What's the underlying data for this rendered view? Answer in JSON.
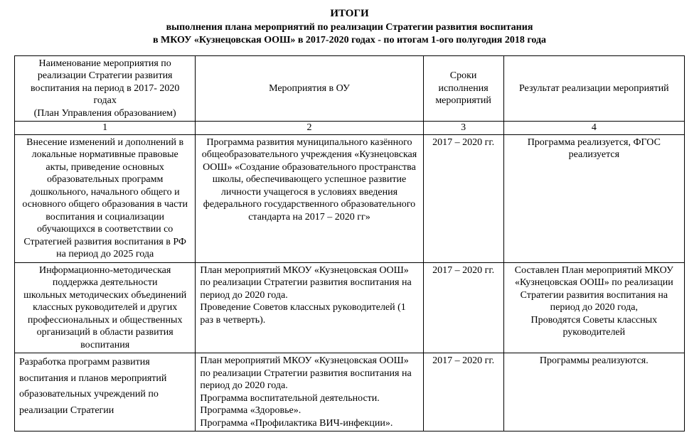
{
  "title": {
    "line1": "ИТОГИ",
    "line2": "выполнения плана мероприятий по реализации Стратегии развития воспитания",
    "line3": "в МКОУ «Кузнецовская ООШ» в 2017-2020 годах - по итогам 1-ого полугодия 2018 года"
  },
  "columns": {
    "h1": "Наименование мероприятия по реализации Стратегии развития воспитания на период в 2017- 2020 годах\n(План Управления образованием)",
    "h2": "Мероприятия  в ОУ",
    "h3": "Сроки исполнения мероприятий",
    "h4": "Результат реализации мероприятий",
    "n1": "1",
    "n2": "2",
    "n3": "3",
    "n4": "4"
  },
  "rows": [
    {
      "c1": "Внесение изменений и дополнений в локальные нормативные правовые акты, приведение  основных образовательных программ дошкольного,  начального общего  и основного общего образования в части воспитания и социализации обучающихся в соответствии со Стратегией развития воспитания в РФ на период до 2025 года",
      "c2": "Программа развития муниципального казённого общеобразовательного учреждения «Кузнецовская ООШ» «Создание образовательного пространства школы, обеспечивающего успешное развитие личности учащегося в условиях введения федерального государственного образовательного стандарта на 2017 – 2020 гг»",
      "c3": "2017 – 2020 гг.",
      "c4": "Программа реализуется, ФГОС реализуется"
    },
    {
      "c1": "Информационно-методическая поддержка деятельности\nшкольных методических объединений классных руководителей и других профессиональных и общественных организаций в области развития воспитания",
      "c2": "План мероприятий МКОУ «Кузнецовская ООШ» по реализации Стратегии развития воспитания   на период до 2020 года.\nПроведение Советов классных руководителей (1 раз в четверть).",
      "c3": "2017 – 2020 гг.",
      "c4": "Составлен План мероприятий МКОУ «Кузнецовская ООШ» по реализации Стратегии развития воспитания   на период до 2020 года,\nПроводятся Советы классных руководителей"
    },
    {
      "c1": "Разработка  программ развития\nвоспитания и планов мероприятий\nобразовательных учреждений по\nреализации Стратегии",
      "c2": "План мероприятий МКОУ «Кузнецовская ООШ» по реализации Стратегии развития воспитания   на период до 2020 года.\nПрограмма воспитательной деятельности.\nПрограмма «Здоровье».\nПрограмма «Профилактика ВИЧ-инфекции».",
      "c3": "2017 – 2020 гг.",
      "c4": "Программы реализуются."
    }
  ],
  "style": {
    "font_family": "Times New Roman",
    "body_fontsize_pt": 11,
    "title_fontsize_pt": 12,
    "border_color": "#000000",
    "background_color": "#ffffff",
    "text_color": "#000000",
    "col_widths_pct": [
      27,
      34,
      12,
      27
    ]
  }
}
